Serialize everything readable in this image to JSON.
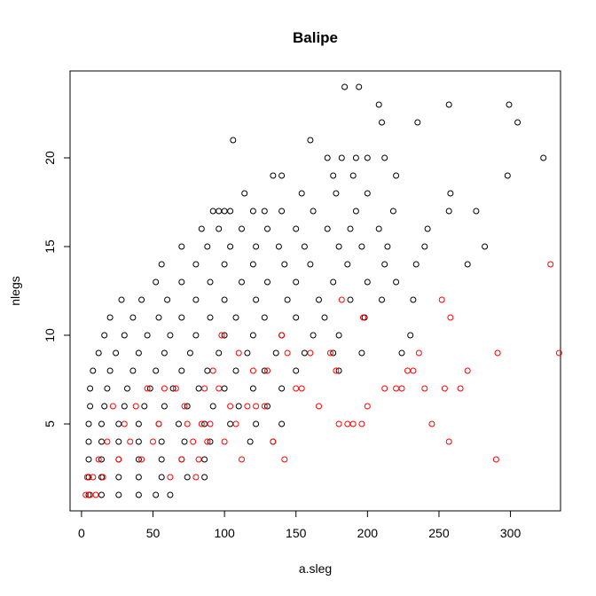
{
  "chart_data": {
    "type": "scatter",
    "title": "Balipe",
    "xlabel": "a.sleg",
    "ylabel": "nlegs",
    "xlim": [
      -8,
      335
    ],
    "ylim": [
      0.1,
      24.9
    ],
    "x_ticks": [
      0,
      50,
      100,
      150,
      200,
      250,
      300
    ],
    "y_ticks": [
      5,
      10,
      15,
      20
    ],
    "grid": false,
    "legend": "none",
    "series": [
      {
        "color": "#000000",
        "points": [
          [
            184,
            24
          ],
          [
            194,
            24
          ],
          [
            208,
            23
          ],
          [
            257,
            23
          ],
          [
            299,
            23
          ],
          [
            210,
            22
          ],
          [
            235,
            22
          ],
          [
            305,
            22
          ],
          [
            106,
            21
          ],
          [
            160,
            21
          ],
          [
            323,
            20
          ],
          [
            212,
            20
          ],
          [
            192,
            20
          ],
          [
            200,
            20
          ],
          [
            172,
            20
          ],
          [
            182,
            20
          ],
          [
            176,
            19
          ],
          [
            134,
            19
          ],
          [
            140,
            19
          ],
          [
            190,
            19
          ],
          [
            220,
            19
          ],
          [
            298,
            19
          ],
          [
            114,
            18
          ],
          [
            154,
            18
          ],
          [
            178,
            18
          ],
          [
            200,
            18
          ],
          [
            258,
            18
          ],
          [
            120,
            17
          ],
          [
            140,
            17
          ],
          [
            162,
            17
          ],
          [
            192,
            17
          ],
          [
            218,
            17
          ],
          [
            257,
            17
          ],
          [
            276,
            17
          ],
          [
            92,
            17
          ],
          [
            96,
            17
          ],
          [
            100,
            17
          ],
          [
            104,
            17
          ],
          [
            128,
            17
          ],
          [
            84,
            16
          ],
          [
            96,
            16
          ],
          [
            112,
            16
          ],
          [
            130,
            16
          ],
          [
            150,
            16
          ],
          [
            172,
            16
          ],
          [
            188,
            16
          ],
          [
            208,
            16
          ],
          [
            242,
            16
          ],
          [
            70,
            15
          ],
          [
            88,
            15
          ],
          [
            104,
            15
          ],
          [
            122,
            15
          ],
          [
            138,
            15
          ],
          [
            156,
            15
          ],
          [
            180,
            15
          ],
          [
            196,
            15
          ],
          [
            214,
            15
          ],
          [
            240,
            15
          ],
          [
            282,
            15
          ],
          [
            56,
            14
          ],
          [
            80,
            14
          ],
          [
            100,
            14
          ],
          [
            120,
            14
          ],
          [
            142,
            14
          ],
          [
            160,
            14
          ],
          [
            186,
            14
          ],
          [
            212,
            14
          ],
          [
            234,
            14
          ],
          [
            270,
            14
          ],
          [
            52,
            13
          ],
          [
            70,
            13
          ],
          [
            90,
            13
          ],
          [
            112,
            13
          ],
          [
            130,
            13
          ],
          [
            150,
            13
          ],
          [
            176,
            13
          ],
          [
            200,
            13
          ],
          [
            220,
            13
          ],
          [
            28,
            12
          ],
          [
            42,
            12
          ],
          [
            60,
            12
          ],
          [
            80,
            12
          ],
          [
            100,
            12
          ],
          [
            122,
            12
          ],
          [
            144,
            12
          ],
          [
            166,
            12
          ],
          [
            188,
            12
          ],
          [
            210,
            12
          ],
          [
            232,
            12
          ],
          [
            20,
            11
          ],
          [
            36,
            11
          ],
          [
            54,
            11
          ],
          [
            70,
            11
          ],
          [
            90,
            11
          ],
          [
            108,
            11
          ],
          [
            128,
            11
          ],
          [
            150,
            11
          ],
          [
            170,
            11
          ],
          [
            198,
            11
          ],
          [
            16,
            10
          ],
          [
            30,
            10
          ],
          [
            46,
            10
          ],
          [
            62,
            10
          ],
          [
            80,
            10
          ],
          [
            100,
            10
          ],
          [
            120,
            10
          ],
          [
            140,
            10
          ],
          [
            162,
            10
          ],
          [
            180,
            10
          ],
          [
            230,
            10
          ],
          [
            12,
            9
          ],
          [
            24,
            9
          ],
          [
            40,
            9
          ],
          [
            58,
            9
          ],
          [
            76,
            9
          ],
          [
            96,
            9
          ],
          [
            116,
            9
          ],
          [
            136,
            9
          ],
          [
            156,
            9
          ],
          [
            176,
            9
          ],
          [
            196,
            9
          ],
          [
            224,
            9
          ],
          [
            8,
            8
          ],
          [
            20,
            8
          ],
          [
            36,
            8
          ],
          [
            52,
            8
          ],
          [
            70,
            8
          ],
          [
            88,
            8
          ],
          [
            108,
            8
          ],
          [
            128,
            8
          ],
          [
            150,
            8
          ],
          [
            180,
            8
          ],
          [
            6,
            7
          ],
          [
            18,
            7
          ],
          [
            32,
            7
          ],
          [
            48,
            7
          ],
          [
            64,
            7
          ],
          [
            82,
            7
          ],
          [
            100,
            7
          ],
          [
            120,
            7
          ],
          [
            140,
            7
          ],
          [
            6,
            6
          ],
          [
            16,
            6
          ],
          [
            30,
            6
          ],
          [
            44,
            6
          ],
          [
            58,
            6
          ],
          [
            74,
            6
          ],
          [
            92,
            6
          ],
          [
            110,
            6
          ],
          [
            130,
            6
          ],
          [
            5,
            5
          ],
          [
            14,
            5
          ],
          [
            26,
            5
          ],
          [
            40,
            5
          ],
          [
            54,
            5
          ],
          [
            68,
            5
          ],
          [
            86,
            5
          ],
          [
            104,
            5
          ],
          [
            122,
            5
          ],
          [
            140,
            5
          ],
          [
            5,
            4
          ],
          [
            14,
            4
          ],
          [
            26,
            4
          ],
          [
            40,
            4
          ],
          [
            56,
            4
          ],
          [
            72,
            4
          ],
          [
            90,
            4
          ],
          [
            118,
            4
          ],
          [
            134,
            4
          ],
          [
            5,
            3
          ],
          [
            14,
            3
          ],
          [
            26,
            3
          ],
          [
            40,
            3
          ],
          [
            56,
            3
          ],
          [
            70,
            3
          ],
          [
            86,
            3
          ],
          [
            5,
            2
          ],
          [
            14,
            2
          ],
          [
            26,
            2
          ],
          [
            40,
            2
          ],
          [
            56,
            2
          ],
          [
            74,
            2
          ],
          [
            86,
            2
          ],
          [
            5,
            1
          ],
          [
            14,
            1
          ],
          [
            26,
            1
          ],
          [
            40,
            1
          ],
          [
            52,
            1
          ],
          [
            62,
            1
          ]
        ]
      },
      {
        "color": "#ff0000",
        "points": [
          [
            334,
            9
          ],
          [
            328,
            14
          ],
          [
            291,
            9
          ],
          [
            290,
            3
          ],
          [
            270,
            8
          ],
          [
            265,
            7
          ],
          [
            258,
            11
          ],
          [
            257,
            4
          ],
          [
            254,
            7
          ],
          [
            252,
            12
          ],
          [
            245,
            5
          ],
          [
            240,
            7
          ],
          [
            236,
            9
          ],
          [
            232,
            8
          ],
          [
            228,
            8
          ],
          [
            224,
            7
          ],
          [
            220,
            7
          ],
          [
            212,
            7
          ],
          [
            200,
            6
          ],
          [
            197,
            11
          ],
          [
            196,
            5
          ],
          [
            190,
            5
          ],
          [
            186,
            5
          ],
          [
            182,
            12
          ],
          [
            180,
            5
          ],
          [
            178,
            8
          ],
          [
            174,
            9
          ],
          [
            166,
            6
          ],
          [
            160,
            9
          ],
          [
            154,
            7
          ],
          [
            150,
            7
          ],
          [
            144,
            9
          ],
          [
            142,
            3
          ],
          [
            140,
            10
          ],
          [
            134,
            4
          ],
          [
            130,
            8
          ],
          [
            128,
            6
          ],
          [
            122,
            6
          ],
          [
            120,
            8
          ],
          [
            116,
            6
          ],
          [
            112,
            3
          ],
          [
            110,
            9
          ],
          [
            108,
            5
          ],
          [
            104,
            6
          ],
          [
            100,
            4
          ],
          [
            98,
            10
          ],
          [
            96,
            7
          ],
          [
            92,
            8
          ],
          [
            90,
            5
          ],
          [
            88,
            4
          ],
          [
            86,
            7
          ],
          [
            84,
            5
          ],
          [
            82,
            3
          ],
          [
            80,
            2
          ],
          [
            78,
            4
          ],
          [
            74,
            5
          ],
          [
            72,
            6
          ],
          [
            70,
            3
          ],
          [
            66,
            7
          ],
          [
            62,
            2
          ],
          [
            58,
            7
          ],
          [
            54,
            5
          ],
          [
            50,
            4
          ],
          [
            46,
            7
          ],
          [
            42,
            3
          ],
          [
            38,
            6
          ],
          [
            34,
            4
          ],
          [
            30,
            5
          ],
          [
            26,
            3
          ],
          [
            22,
            6
          ],
          [
            18,
            4
          ],
          [
            15,
            2
          ],
          [
            12,
            3
          ],
          [
            10,
            1
          ],
          [
            8,
            2
          ],
          [
            6,
            1
          ],
          [
            4,
            2
          ],
          [
            3,
            1
          ]
        ]
      }
    ]
  }
}
